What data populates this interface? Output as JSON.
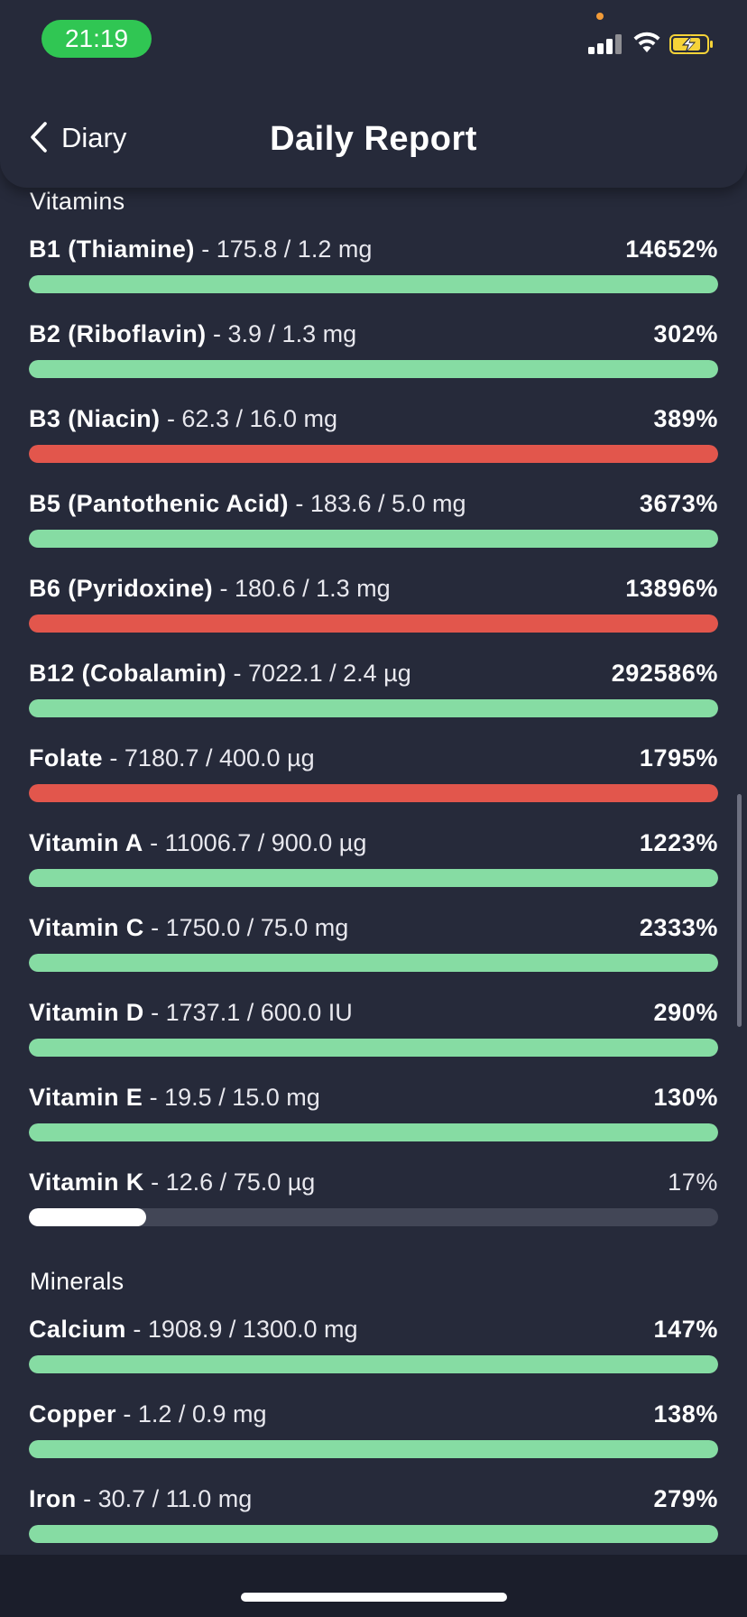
{
  "status_bar": {
    "time": "21:19"
  },
  "header": {
    "back_label": "Diary",
    "title": "Daily Report"
  },
  "colors": {
    "good": "#86dca3",
    "over": "#e2564c",
    "partial": "#ffffff",
    "track": "#424656"
  },
  "sections": [
    {
      "title": "Vitamins",
      "items": [
        {
          "name": "B1 (Thiamine)",
          "amount": " - 175.8 / 1.2 mg",
          "percent": "14652%",
          "status": "good",
          "fill": 1.0
        },
        {
          "name": "B2 (Riboflavin)",
          "amount": " - 3.9 / 1.3 mg",
          "percent": "302%",
          "status": "good",
          "fill": 1.0
        },
        {
          "name": "B3 (Niacin)",
          "amount": " - 62.3 / 16.0 mg",
          "percent": "389%",
          "status": "over",
          "fill": 1.0
        },
        {
          "name": "B5 (Pantothenic Acid)",
          "amount": " - 183.6 / 5.0 mg",
          "percent": "3673%",
          "status": "good",
          "fill": 1.0
        },
        {
          "name": "B6 (Pyridoxine)",
          "amount": " - 180.6 / 1.3 mg",
          "percent": "13896%",
          "status": "over",
          "fill": 1.0
        },
        {
          "name": "B12 (Cobalamin)",
          "amount": " - 7022.1 / 2.4 µg",
          "percent": "292586%",
          "status": "good",
          "fill": 1.0
        },
        {
          "name": "Folate",
          "amount": " - 7180.7 / 400.0 µg",
          "percent": "1795%",
          "status": "over",
          "fill": 1.0
        },
        {
          "name": "Vitamin A",
          "amount": " - 11006.7 / 900.0 µg",
          "percent": "1223%",
          "status": "good",
          "fill": 1.0
        },
        {
          "name": "Vitamin C",
          "amount": " - 1750.0 / 75.0 mg",
          "percent": "2333%",
          "status": "good",
          "fill": 1.0
        },
        {
          "name": "Vitamin D",
          "amount": " - 1737.1 / 600.0 IU",
          "percent": "290%",
          "status": "good",
          "fill": 1.0
        },
        {
          "name": "Vitamin E",
          "amount": " - 19.5 / 15.0 mg",
          "percent": "130%",
          "status": "good",
          "fill": 1.0
        },
        {
          "name": "Vitamin K",
          "amount": " - 12.6 / 75.0 µg",
          "percent": "17%",
          "status": "partial",
          "fill": 0.17
        }
      ]
    },
    {
      "title": "Minerals",
      "items": [
        {
          "name": "Calcium",
          "amount": " - 1908.9 / 1300.0 mg",
          "percent": "147%",
          "status": "good",
          "fill": 1.0
        },
        {
          "name": "Copper",
          "amount": " - 1.2 / 0.9 mg",
          "percent": "138%",
          "status": "good",
          "fill": 1.0
        },
        {
          "name": "Iron",
          "amount": " - 30.7 / 11.0 mg",
          "percent": "279%",
          "status": "good",
          "fill": 1.0
        }
      ]
    }
  ]
}
